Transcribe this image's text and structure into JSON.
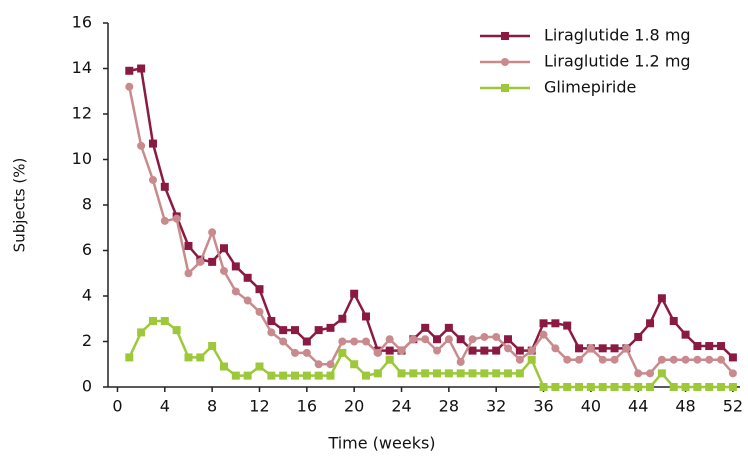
{
  "chart_data": {
    "type": "line",
    "xlabel": "Time (weeks)",
    "ylabel": "Subjects (%)",
    "x": [
      1,
      2,
      3,
      4,
      5,
      6,
      7,
      8,
      9,
      10,
      11,
      12,
      13,
      14,
      15,
      16,
      17,
      18,
      19,
      20,
      21,
      22,
      23,
      24,
      25,
      26,
      27,
      28,
      29,
      30,
      31,
      32,
      33,
      34,
      35,
      36,
      37,
      38,
      39,
      40,
      41,
      42,
      43,
      44,
      45,
      46,
      47,
      48,
      49,
      50,
      51,
      52
    ],
    "xlim": [
      -0.8,
      52.6
    ],
    "xticks": [
      0,
      4,
      8,
      12,
      16,
      20,
      24,
      28,
      32,
      36,
      40,
      44,
      48,
      52
    ],
    "ylim": [
      0,
      16
    ],
    "yticks": [
      0,
      2,
      4,
      6,
      8,
      10,
      12,
      14,
      16
    ],
    "legend": "upper right",
    "series": [
      {
        "name": "Liraglutide 1.8 mg",
        "color": "#8b1a42",
        "marker": "square",
        "values": [
          13.9,
          14.0,
          10.7,
          8.8,
          7.5,
          6.2,
          5.6,
          5.5,
          6.1,
          5.3,
          4.8,
          4.3,
          2.9,
          2.5,
          2.5,
          2.0,
          2.5,
          2.6,
          3.0,
          4.1,
          3.1,
          1.6,
          1.6,
          1.6,
          2.1,
          2.6,
          2.1,
          2.6,
          2.1,
          1.6,
          1.6,
          1.6,
          2.1,
          1.6,
          1.6,
          2.8,
          2.8,
          2.7,
          1.7,
          1.7,
          1.7,
          1.7,
          1.7,
          2.2,
          2.8,
          3.9,
          2.9,
          2.3,
          1.8,
          1.8,
          1.8,
          1.3
        ]
      },
      {
        "name": "Liraglutide 1.2 mg",
        "color": "#c98a8e",
        "marker": "circle",
        "values": [
          13.2,
          10.6,
          9.1,
          7.3,
          7.4,
          5.0,
          5.5,
          6.8,
          5.1,
          4.2,
          3.8,
          3.3,
          2.4,
          2.0,
          1.5,
          1.5,
          1.0,
          1.0,
          2.0,
          2.0,
          2.0,
          1.5,
          2.1,
          1.6,
          2.1,
          2.1,
          1.6,
          2.1,
          1.1,
          2.1,
          2.2,
          2.2,
          1.7,
          1.2,
          1.6,
          2.3,
          1.7,
          1.2,
          1.2,
          1.7,
          1.2,
          1.2,
          1.7,
          0.6,
          0.6,
          1.2,
          1.2,
          1.2,
          1.2,
          1.2,
          1.2,
          0.6
        ]
      },
      {
        "name": "Glimepiride",
        "color": "#9dc83a",
        "marker": "square",
        "values": [
          1.3,
          2.4,
          2.9,
          2.9,
          2.5,
          1.3,
          1.3,
          1.8,
          0.9,
          0.5,
          0.5,
          0.9,
          0.5,
          0.5,
          0.5,
          0.5,
          0.5,
          0.5,
          1.5,
          1.0,
          0.5,
          0.6,
          1.2,
          0.6,
          0.6,
          0.6,
          0.6,
          0.6,
          0.6,
          0.6,
          0.6,
          0.6,
          0.6,
          0.6,
          1.2,
          0,
          0,
          0,
          0,
          0,
          0,
          0,
          0,
          0,
          0,
          0.6,
          0,
          0,
          0,
          0,
          0,
          0
        ]
      }
    ]
  }
}
